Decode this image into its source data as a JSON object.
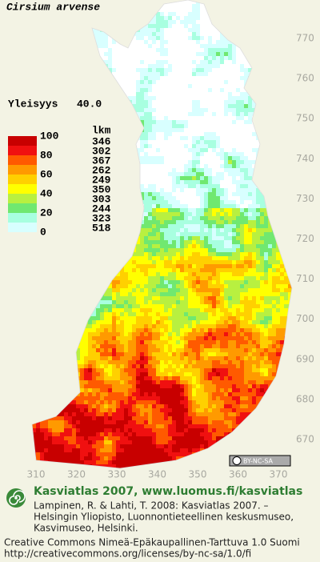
{
  "title": "Cirsium arvense",
  "frequency": {
    "label": "Yleisyys",
    "value": "40.0"
  },
  "legend": {
    "levels": [
      100,
      80,
      60,
      40,
      20,
      0
    ],
    "count_header": "lkm",
    "counts": [
      346,
      302,
      367,
      262,
      249,
      350,
      303,
      244,
      323,
      518
    ],
    "colors": [
      "#c80000",
      "#f01010",
      "#ff5a00",
      "#ff9a00",
      "#ffd000",
      "#ffff00",
      "#b8f040",
      "#70e870",
      "#a8ffe0",
      "#d8ffff",
      "#ffffff"
    ]
  },
  "map": {
    "yticks": [
      770,
      760,
      750,
      740,
      730,
      720,
      710,
      700,
      690,
      680,
      670
    ],
    "xticks": [
      310,
      320,
      330,
      340,
      350,
      360,
      370
    ]
  },
  "cc_badge": "BY-NC-SA",
  "footer": {
    "heading": "Kasviatlas 2007, www.luomus.fi/kasviatlas",
    "citation": [
      "Lampinen, R. & Lahti, T. 2008: Kasviatlas 2007. –",
      "Helsingin Yliopisto, Luonnontieteellinen keskusmuseo,",
      "Kasvimuseo, Helsinki."
    ],
    "license": [
      "Creative Commons Nimeä-Epäkaupallinen-Tarttuva 1.0 Suomi",
      "http://creativecommons.org/licenses/by-nc-sa/1.0/fi"
    ]
  }
}
